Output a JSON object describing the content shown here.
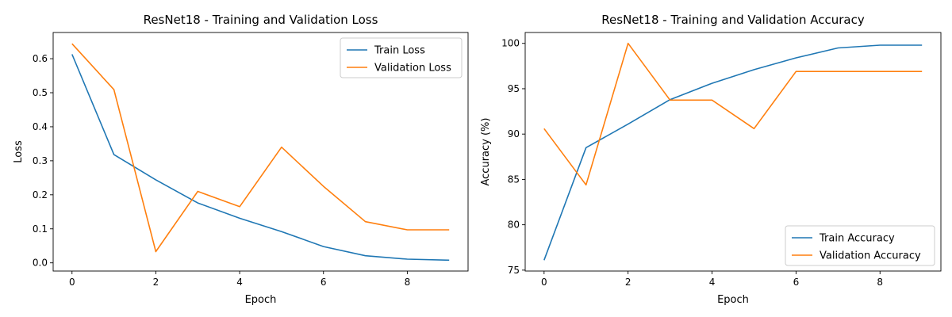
{
  "chart_data": [
    {
      "type": "line",
      "title": "ResNet18 - Training and Validation Loss",
      "xlabel": "Epoch",
      "ylabel": "Loss",
      "xlim": [
        -0.45,
        9.45
      ],
      "ylim": [
        -0.024,
        0.677
      ],
      "xticks": [
        0,
        2,
        4,
        6,
        8
      ],
      "yticks": [
        0.0,
        0.1,
        0.2,
        0.3,
        0.4,
        0.5,
        0.6
      ],
      "ytick_labels": [
        "0.0",
        "0.1",
        "0.2",
        "0.3",
        "0.4",
        "0.5",
        "0.6"
      ],
      "grid": false,
      "legend_position": "top-right",
      "x": [
        0,
        1,
        2,
        3,
        4,
        5,
        6,
        7,
        8,
        9
      ],
      "series": [
        {
          "name": "Train Loss",
          "color": "#1f77b4",
          "values": [
            0.613,
            0.318,
            0.244,
            0.176,
            0.131,
            0.092,
            0.048,
            0.021,
            0.011,
            0.008
          ]
        },
        {
          "name": "Validation Loss",
          "color": "#ff7f0e",
          "values": [
            0.644,
            0.509,
            0.033,
            0.21,
            0.165,
            0.34,
            0.225,
            0.121,
            0.097,
            0.097
          ]
        }
      ]
    },
    {
      "type": "line",
      "title": "ResNet18 - Training and Validation Accuracy",
      "xlabel": "Epoch",
      "ylabel": "Accuracy (%)",
      "xlim": [
        -0.45,
        9.45
      ],
      "ylim": [
        74.9,
        101.2
      ],
      "xticks": [
        0,
        2,
        4,
        6,
        8
      ],
      "yticks": [
        75,
        80,
        85,
        90,
        95,
        100
      ],
      "ytick_labels": [
        "75",
        "80",
        "85",
        "90",
        "95",
        "100"
      ],
      "grid": false,
      "legend_position": "bottom-right",
      "x": [
        0,
        1,
        2,
        3,
        4,
        5,
        6,
        7,
        8,
        9
      ],
      "series": [
        {
          "name": "Train Accuracy",
          "color": "#1f77b4",
          "values": [
            76.1,
            88.5,
            91.1,
            93.8,
            95.6,
            97.1,
            98.4,
            99.5,
            99.8,
            99.8
          ]
        },
        {
          "name": "Validation Accuracy",
          "color": "#ff7f0e",
          "values": [
            90.6,
            84.4,
            100.0,
            93.75,
            93.75,
            90.6,
            96.9,
            96.9,
            96.9,
            96.9
          ]
        }
      ]
    }
  ]
}
